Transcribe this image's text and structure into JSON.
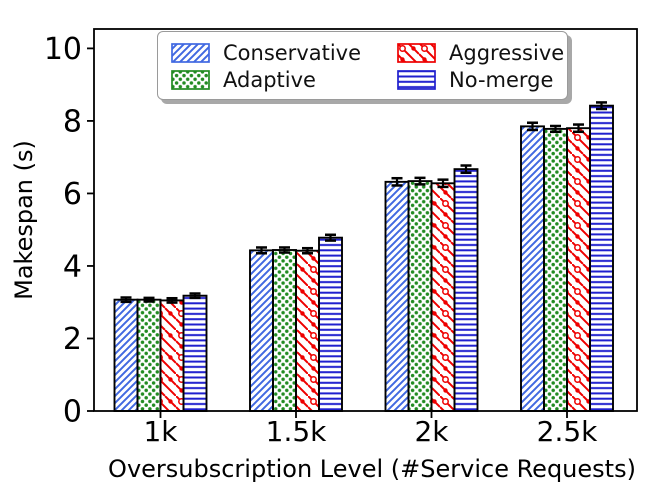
{
  "figure": {
    "background": "#ffffff"
  },
  "chart_data": {
    "type": "bar",
    "title": "",
    "xlabel": "Oversubscription Level (#Service Requests)",
    "ylabel": "Makespan (s)",
    "categories": [
      "1k",
      "1.5k",
      "2k",
      "2.5k"
    ],
    "yticks": [
      "0",
      "2",
      "4",
      "6",
      "8",
      "10"
    ],
    "ytick_values": [
      0,
      2,
      4,
      6,
      8,
      10
    ],
    "ylim": [
      0,
      10.53
    ],
    "grid": false,
    "error_bars": true,
    "legend_position": "upper center, 2 columns, shadowed box",
    "bar_edge_color": "#000000",
    "series": [
      {
        "name": "Conservative",
        "color": "#4169E1",
        "hatch": "/",
        "values": [
          3.07,
          4.43,
          6.32,
          7.85
        ],
        "errors": [
          0.06,
          0.08,
          0.1,
          0.1
        ]
      },
      {
        "name": "Adaptive",
        "color": "#228B22",
        "hatch": "..",
        "values": [
          3.07,
          4.44,
          6.34,
          7.78
        ],
        "errors": [
          0.05,
          0.07,
          0.09,
          0.08
        ]
      },
      {
        "name": "Aggressive",
        "color": "#EE0000",
        "hatch": "\\o.",
        "values": [
          3.05,
          4.42,
          6.28,
          7.8
        ],
        "errors": [
          0.06,
          0.07,
          0.1,
          0.1
        ]
      },
      {
        "name": "No-merge",
        "color": "#2020CE",
        "hatch": "-",
        "values": [
          3.18,
          4.78,
          6.67,
          8.42
        ],
        "errors": [
          0.06,
          0.08,
          0.1,
          0.09
        ]
      }
    ]
  }
}
